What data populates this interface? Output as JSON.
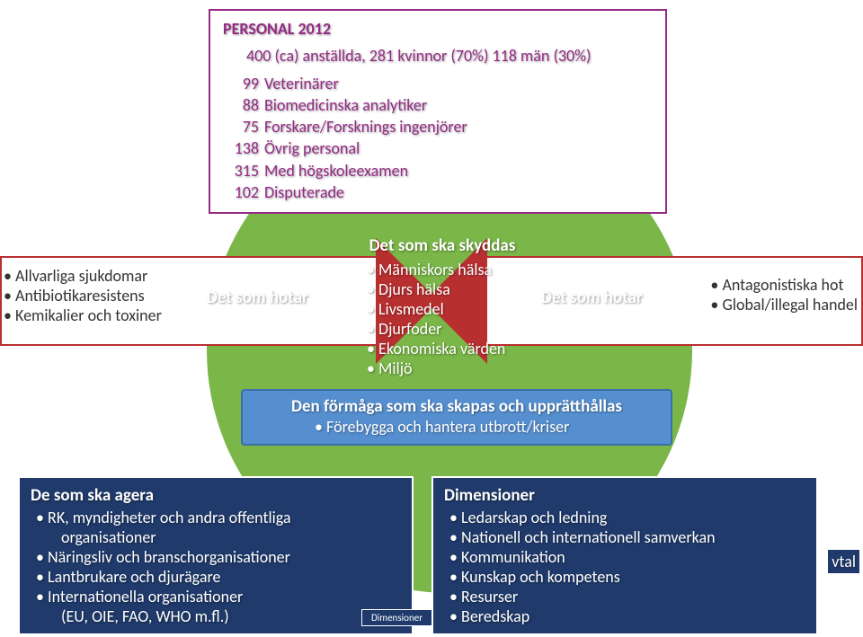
{
  "colors": {
    "circle": "#7ab648",
    "personal_border": "#942b85",
    "personal_bg": "#ffffff",
    "arrow_fill": "#b82f30",
    "arrow_border": "#ffffff",
    "center_text": "#ffffff",
    "ability_bg": "#568fcf",
    "ability_border": "#3a6fa8",
    "bottom_bg": "#1f3a6b",
    "text_dark": "#333333"
  },
  "personal": {
    "title": "PERSONAL 2012",
    "summary": "400 (ca) anställda, 281 kvinnor (70%) 118 män (30%)",
    "rows": [
      {
        "n": "99",
        "label": "Veterinärer"
      },
      {
        "n": "88",
        "label": "Biomedicinska analytiker"
      },
      {
        "n": "75",
        "label": "Forskare/Forsknings ingenjörer"
      },
      {
        "n": "138",
        "label": "Övrig personal"
      },
      {
        "n": "315",
        "label": "Med högskoleexamen"
      },
      {
        "n": "102",
        "label": "Disputerade"
      }
    ]
  },
  "center": {
    "title": "Det som ska skyddas",
    "items": [
      "Människors hälsa",
      "Djurs hälsa",
      "Livsmedel",
      "Djurfoder",
      "Ekonomiska värden",
      "Miljö"
    ]
  },
  "threat_label": "Det som hotar",
  "left_threats": [
    "Allvarliga sjukdomar",
    "Antibiotikaresistens",
    "Kemikalier och toxiner"
  ],
  "right_threats": [
    "Antagonistiska hot",
    "Global/illegal handel"
  ],
  "ability": {
    "title": "Den förmåga som ska skapas och upprätthållas",
    "items": [
      "Förebygga och hantera utbrott/kriser"
    ]
  },
  "bottom_left": {
    "title": "De som ska agera",
    "items": [
      "RK, myndigheter och andra offentliga organisationer",
      "Näringsliv och branschorganisationer",
      "Lantbrukare och djurägare",
      "Internationella organisationer (EU, OIE, FAO, WHO m.fl.)"
    ]
  },
  "bottom_right": {
    "title": "Dimensioner",
    "items": [
      "Ledarskap och ledning",
      "Nationell och internationell samverkan",
      "Kommunikation",
      "Kunskap och kompetens",
      "Resurser",
      "Beredskap"
    ]
  },
  "dim_tag": "Dimensioner",
  "vtal": "vtal"
}
